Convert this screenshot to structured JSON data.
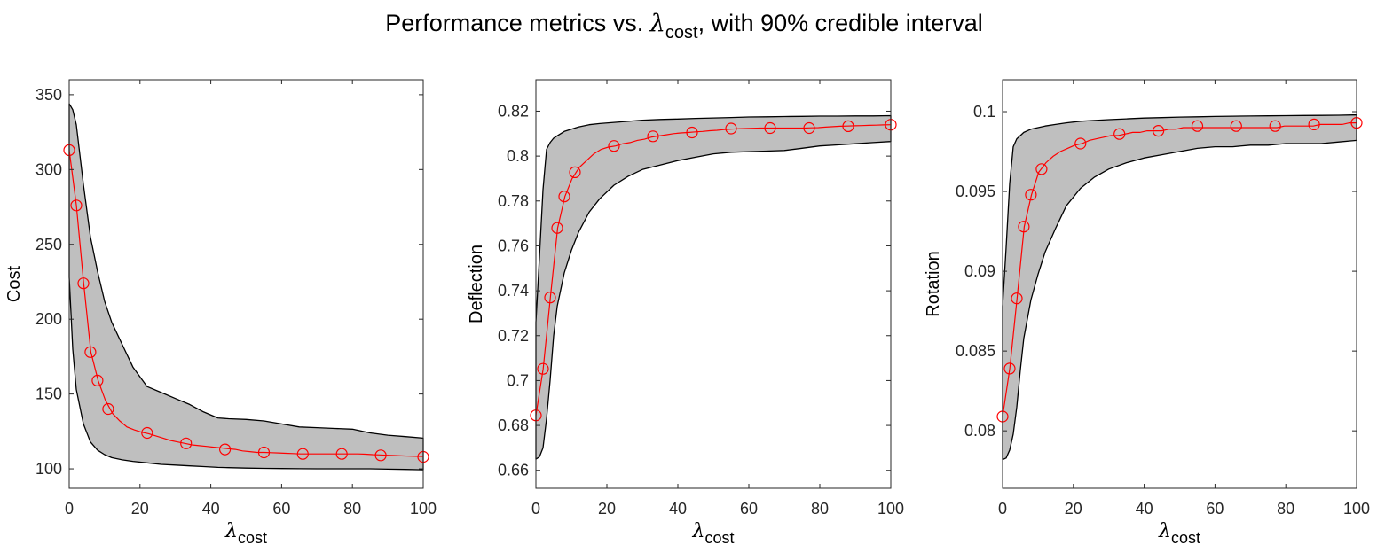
{
  "figure": {
    "title_prefix": "Performance metrics vs. ",
    "title_symbol": "λ",
    "title_subscript": "cost",
    "title_suffix": ", with 90% credible interval"
  },
  "chart_data": [
    {
      "type": "area",
      "ylabel": "Cost",
      "xlabel_symbol": "λ",
      "xlabel_subscript": "cost",
      "xlim": [
        0,
        100
      ],
      "ylim": [
        87,
        360
      ],
      "xticks": [
        0,
        20,
        40,
        60,
        80,
        100
      ],
      "xtick_labels": [
        "0",
        "20",
        "40",
        "60",
        "80",
        "100"
      ],
      "yticks": [
        100,
        150,
        200,
        250,
        300,
        350
      ],
      "ytick_labels": [
        "100",
        "150",
        "200",
        "250",
        "300",
        "350"
      ],
      "grid": false,
      "series": [
        {
          "kind": "band",
          "x": [
            0,
            1,
            2,
            4,
            6,
            8,
            10,
            12,
            15,
            18,
            22,
            26,
            30,
            34,
            38,
            42,
            45,
            50,
            55,
            60,
            65,
            70,
            75,
            80,
            85,
            90,
            95,
            100
          ],
          "upper": [
            344,
            340,
            330,
            290,
            255,
            232,
            212,
            198,
            183,
            168,
            155,
            151,
            147,
            143,
            138,
            134,
            133.5,
            133,
            132,
            130,
            128,
            127.5,
            127,
            126.5,
            124,
            122.5,
            121.5,
            120.5
          ],
          "lower": [
            228,
            180,
            153,
            130,
            118,
            112.5,
            109.5,
            107.5,
            106,
            105,
            104,
            103,
            102.5,
            102,
            101.5,
            101,
            100.8,
            100.5,
            100.3,
            100.2,
            100.1,
            100,
            100,
            100,
            100,
            99.8,
            99.6,
            99.4
          ]
        },
        {
          "kind": "line",
          "x": [
            0,
            2.0408,
            4.0816,
            6.1224,
            8.1633,
            10.2041,
            12.2449,
            14.2857,
            16.3265,
            18.3673,
            20.4082,
            22.449,
            24.4898,
            26.5306,
            28.5714,
            30.6122,
            32.6531,
            34.6939,
            36.7347,
            38.7755,
            40.8163,
            42.8571,
            44.898,
            46.9388,
            48.9796,
            51.0204,
            53.0612,
            55.102,
            57.1429,
            59.1837,
            61.2245,
            63.2653,
            65.3061,
            67.3469,
            69.3878,
            71.4286,
            73.4694,
            75.5102,
            77.551,
            79.5918,
            81.6327,
            83.6735,
            85.7143,
            87.7551,
            89.7959,
            91.8367,
            93.8776,
            95.9184,
            97.9592,
            100
          ],
          "y": [
            313,
            276,
            224,
            178,
            159,
            146,
            137,
            132,
            128,
            126,
            124.5,
            123.5,
            122,
            120.5,
            119,
            118,
            117,
            116,
            115.5,
            115,
            114.5,
            114,
            113.5,
            113,
            112,
            111.5,
            111,
            111,
            110.8,
            110.6,
            110.4,
            110.2,
            110,
            110,
            110,
            110,
            110,
            110,
            110,
            110,
            110,
            109.8,
            109.5,
            109.3,
            109.1,
            108.9,
            108.7,
            108.5,
            108.4,
            108.3
          ]
        },
        {
          "kind": "markers",
          "x": [
            0,
            2,
            4,
            6,
            8,
            11,
            22,
            33,
            44,
            55,
            66,
            77,
            88,
            100
          ],
          "y": [
            313,
            276,
            224,
            178,
            159,
            140,
            124,
            117,
            113,
            111,
            110,
            110,
            109,
            108
          ]
        }
      ]
    },
    {
      "type": "area",
      "ylabel": "Deflection",
      "xlabel_symbol": "λ",
      "xlabel_subscript": "cost",
      "xlim": [
        0,
        100
      ],
      "ylim": [
        0.652,
        0.834
      ],
      "xticks": [
        0,
        20,
        40,
        60,
        80,
        100
      ],
      "xtick_labels": [
        "0",
        "20",
        "40",
        "60",
        "80",
        "100"
      ],
      "yticks": [
        0.66,
        0.68,
        0.7,
        0.72,
        0.74,
        0.76,
        0.78,
        0.8,
        0.82
      ],
      "ytick_labels": [
        "0.66",
        "0.68",
        "0.7",
        "0.72",
        "0.74",
        "0.76",
        "0.78",
        "0.8",
        "0.82"
      ],
      "grid": false,
      "series": [
        {
          "kind": "band",
          "x": [
            0,
            1,
            2,
            3,
            4,
            5,
            6,
            8,
            10,
            12,
            15,
            18,
            22,
            26,
            30,
            35,
            40,
            45,
            50,
            55,
            60,
            65,
            70,
            75,
            80,
            85,
            90,
            95,
            100
          ],
          "upper": [
            0.726,
            0.755,
            0.785,
            0.803,
            0.806,
            0.808,
            0.809,
            0.811,
            0.812,
            0.813,
            0.814,
            0.8145,
            0.815,
            0.8155,
            0.816,
            0.8163,
            0.8165,
            0.8168,
            0.817,
            0.8172,
            0.8174,
            0.8175,
            0.8176,
            0.8177,
            0.8178,
            0.8178,
            0.8179,
            0.8179,
            0.818
          ],
          "lower": [
            0.665,
            0.666,
            0.67,
            0.683,
            0.7,
            0.72,
            0.733,
            0.748,
            0.758,
            0.766,
            0.775,
            0.781,
            0.787,
            0.791,
            0.794,
            0.796,
            0.798,
            0.7995,
            0.801,
            0.8017,
            0.802,
            0.8022,
            0.8025,
            0.8035,
            0.8045,
            0.805,
            0.8055,
            0.806,
            0.8065
          ]
        },
        {
          "kind": "line",
          "x": [
            0,
            2.0408,
            4.0816,
            6.1224,
            8.1633,
            10.2041,
            12.2449,
            14.2857,
            16.3265,
            18.3673,
            20.4082,
            22.449,
            24.4898,
            26.5306,
            28.5714,
            30.6122,
            32.6531,
            34.6939,
            36.7347,
            38.7755,
            40.8163,
            42.8571,
            44.898,
            46.9388,
            48.9796,
            51.0204,
            53.0612,
            55.102,
            57.1429,
            59.1837,
            61.2245,
            63.2653,
            65.3061,
            67.3469,
            69.3878,
            71.4286,
            73.4694,
            75.5102,
            77.551,
            79.5918,
            81.6327,
            83.6735,
            85.7143,
            87.7551,
            89.7959,
            91.8367,
            93.8776,
            95.9184,
            97.9592,
            100
          ],
          "y": [
            0.6845,
            0.7052,
            0.737,
            0.768,
            0.782,
            0.79,
            0.795,
            0.798,
            0.801,
            0.803,
            0.804,
            0.8045,
            0.8055,
            0.806,
            0.807,
            0.8075,
            0.8085,
            0.809,
            0.8095,
            0.81,
            0.8103,
            0.8105,
            0.8108,
            0.811,
            0.8113,
            0.8115,
            0.8118,
            0.812,
            0.8122,
            0.8123,
            0.8124,
            0.8125,
            0.8125,
            0.8125,
            0.8125,
            0.8125,
            0.8125,
            0.8125,
            0.8126,
            0.8127,
            0.8129,
            0.8131,
            0.8133,
            0.8134,
            0.8135,
            0.8136,
            0.8137,
            0.8138,
            0.8139,
            0.814
          ]
        },
        {
          "kind": "markers",
          "x": [
            0,
            2,
            4,
            6,
            8,
            11,
            22,
            33,
            44,
            55,
            66,
            77,
            88,
            100
          ],
          "y": [
            0.6845,
            0.7052,
            0.737,
            0.768,
            0.782,
            0.7928,
            0.8045,
            0.8088,
            0.8105,
            0.8123,
            0.8125,
            0.8125,
            0.8133,
            0.814
          ]
        }
      ]
    },
    {
      "type": "area",
      "ylabel": "Rotation",
      "xlabel_symbol": "λ",
      "xlabel_subscript": "cost",
      "xlim": [
        0,
        100
      ],
      "ylim": [
        0.0764,
        0.102
      ],
      "xticks": [
        0,
        20,
        40,
        60,
        80,
        100
      ],
      "xtick_labels": [
        "0",
        "20",
        "40",
        "60",
        "80",
        "100"
      ],
      "yticks": [
        0.08,
        0.085,
        0.09,
        0.095,
        0.1
      ],
      "ytick_labels": [
        "0.08",
        "0.085",
        "0.09",
        "0.095",
        "0.1"
      ],
      "grid": false,
      "series": [
        {
          "kind": "band",
          "x": [
            0,
            1,
            2,
            3,
            4,
            5,
            6,
            8,
            10,
            12,
            15,
            18,
            22,
            26,
            30,
            35,
            40,
            45,
            50,
            55,
            60,
            65,
            70,
            75,
            80,
            85,
            90,
            95,
            100
          ],
          "upper": [
            0.0878,
            0.0915,
            0.0955,
            0.0978,
            0.0983,
            0.0985,
            0.0987,
            0.0989,
            0.099,
            0.0991,
            0.0992,
            0.0993,
            0.0994,
            0.09945,
            0.0995,
            0.09955,
            0.0996,
            0.09963,
            0.09966,
            0.09968,
            0.0997,
            0.09972,
            0.09973,
            0.09974,
            0.09975,
            0.09976,
            0.09977,
            0.09978,
            0.0998
          ],
          "lower": [
            0.0782,
            0.0783,
            0.0788,
            0.0798,
            0.0815,
            0.0838,
            0.0858,
            0.0882,
            0.0898,
            0.0912,
            0.0927,
            0.0941,
            0.0952,
            0.0959,
            0.0964,
            0.0968,
            0.0971,
            0.0973,
            0.0975,
            0.0977,
            0.0978,
            0.0978,
            0.0979,
            0.0979,
            0.098,
            0.098,
            0.098,
            0.0981,
            0.0982
          ]
        },
        {
          "kind": "line",
          "x": [
            0,
            2.0408,
            4.0816,
            6.1224,
            8.1633,
            10.2041,
            12.2449,
            14.2857,
            16.3265,
            18.3673,
            20.4082,
            22.449,
            24.4898,
            26.5306,
            28.5714,
            30.6122,
            32.6531,
            34.6939,
            36.7347,
            38.7755,
            40.8163,
            42.8571,
            44.898,
            46.9388,
            48.9796,
            51.0204,
            53.0612,
            55.102,
            57.1429,
            59.1837,
            61.2245,
            63.2653,
            65.3061,
            67.3469,
            69.3878,
            71.4286,
            73.4694,
            75.5102,
            77.551,
            79.5918,
            81.6327,
            83.6735,
            85.7143,
            87.7551,
            89.7959,
            91.8367,
            93.8776,
            95.9184,
            97.9592,
            100
          ],
          "y": [
            0.0809,
            0.0839,
            0.0883,
            0.0928,
            0.0948,
            0.0962,
            0.0968,
            0.0972,
            0.0975,
            0.0977,
            0.0979,
            0.098,
            0.0982,
            0.0983,
            0.0984,
            0.0985,
            0.0985,
            0.0986,
            0.0987,
            0.0987,
            0.0988,
            0.0988,
            0.0988,
            0.0989,
            0.0989,
            0.099,
            0.099,
            0.099,
            0.099,
            0.099,
            0.099,
            0.099,
            0.099,
            0.099,
            0.099,
            0.099,
            0.099,
            0.099,
            0.099,
            0.0991,
            0.0991,
            0.0991,
            0.0991,
            0.0991,
            0.0992,
            0.0992,
            0.0992,
            0.0992,
            0.0993,
            0.0993
          ]
        },
        {
          "kind": "markers",
          "x": [
            0,
            2,
            4,
            6,
            8,
            11,
            22,
            33,
            44,
            55,
            66,
            77,
            88,
            100
          ],
          "y": [
            0.0809,
            0.0839,
            0.0883,
            0.0928,
            0.0948,
            0.0964,
            0.098,
            0.0986,
            0.0988,
            0.0991,
            0.0991,
            0.0991,
            0.0992,
            0.0993
          ]
        }
      ]
    }
  ],
  "colors": {
    "band_fill": "#bfbfbf",
    "band_edge": "#000000",
    "line": "#ff0000",
    "axes": "#262626",
    "background": "#ffffff"
  }
}
